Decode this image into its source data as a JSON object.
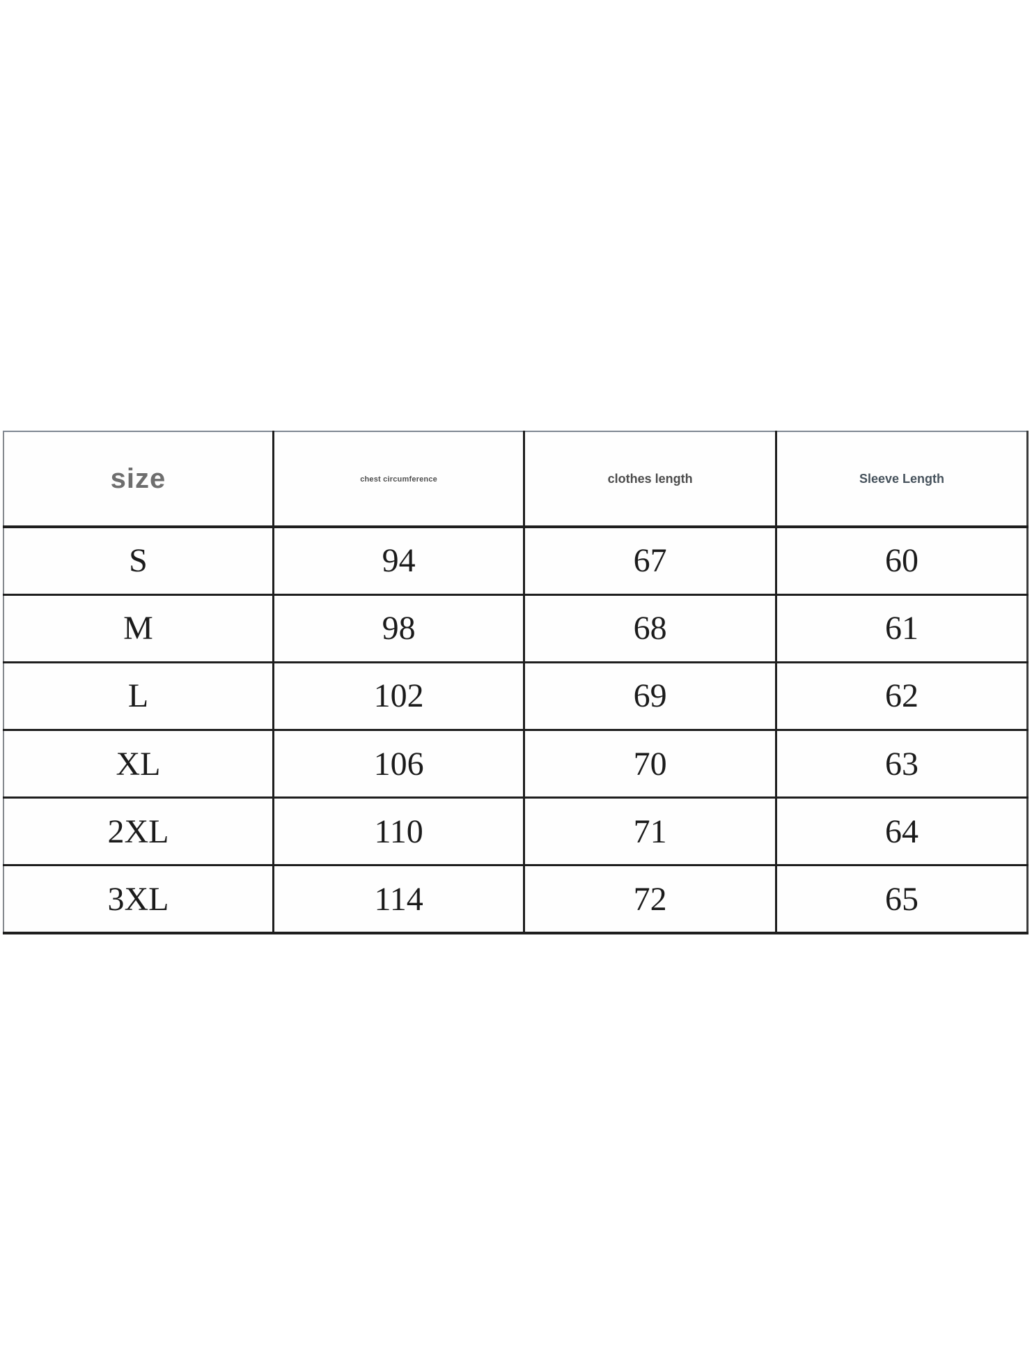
{
  "table": {
    "columns": [
      {
        "key": "size",
        "label": "size"
      },
      {
        "key": "chest",
        "label": "chest circumference"
      },
      {
        "key": "clothes",
        "label": "clothes length"
      },
      {
        "key": "sleeve",
        "label": "Sleeve Length"
      }
    ],
    "rows": [
      {
        "size": "S",
        "chest": "94",
        "clothes": "67",
        "sleeve": "60"
      },
      {
        "size": "M",
        "chest": "98",
        "clothes": "68",
        "sleeve": "61"
      },
      {
        "size": "L",
        "chest": "102",
        "clothes": "69",
        "sleeve": "62"
      },
      {
        "size": "XL",
        "chest": "106",
        "clothes": "70",
        "sleeve": "63"
      },
      {
        "size": "2XL",
        "chest": "110",
        "clothes": "71",
        "sleeve": "64"
      },
      {
        "size": "3XL",
        "chest": "114",
        "clothes": "72",
        "sleeve": "65"
      }
    ]
  },
  "chart_data": {
    "type": "table",
    "title": "",
    "columns": [
      "size",
      "chest circumference",
      "clothes length",
      "Sleeve Length"
    ],
    "rows": [
      [
        "S",
        94,
        67,
        60
      ],
      [
        "M",
        98,
        68,
        61
      ],
      [
        "L",
        102,
        69,
        62
      ],
      [
        "XL",
        106,
        70,
        63
      ],
      [
        "2XL",
        110,
        71,
        64
      ],
      [
        "3XL",
        114,
        72,
        65
      ]
    ],
    "layout_hints": {
      "grid": "full-borders",
      "header_row": true,
      "value_font": "serif",
      "header_font": "sans-serif"
    },
    "colors": {
      "border_inner": "#1e1e1e",
      "border_outer": "#7e8792",
      "header_size_text": "#6e6e6e",
      "header_sleeve_text": "#46525c",
      "cell_text": "#1b1b1b",
      "background": "#ffffff"
    }
  }
}
